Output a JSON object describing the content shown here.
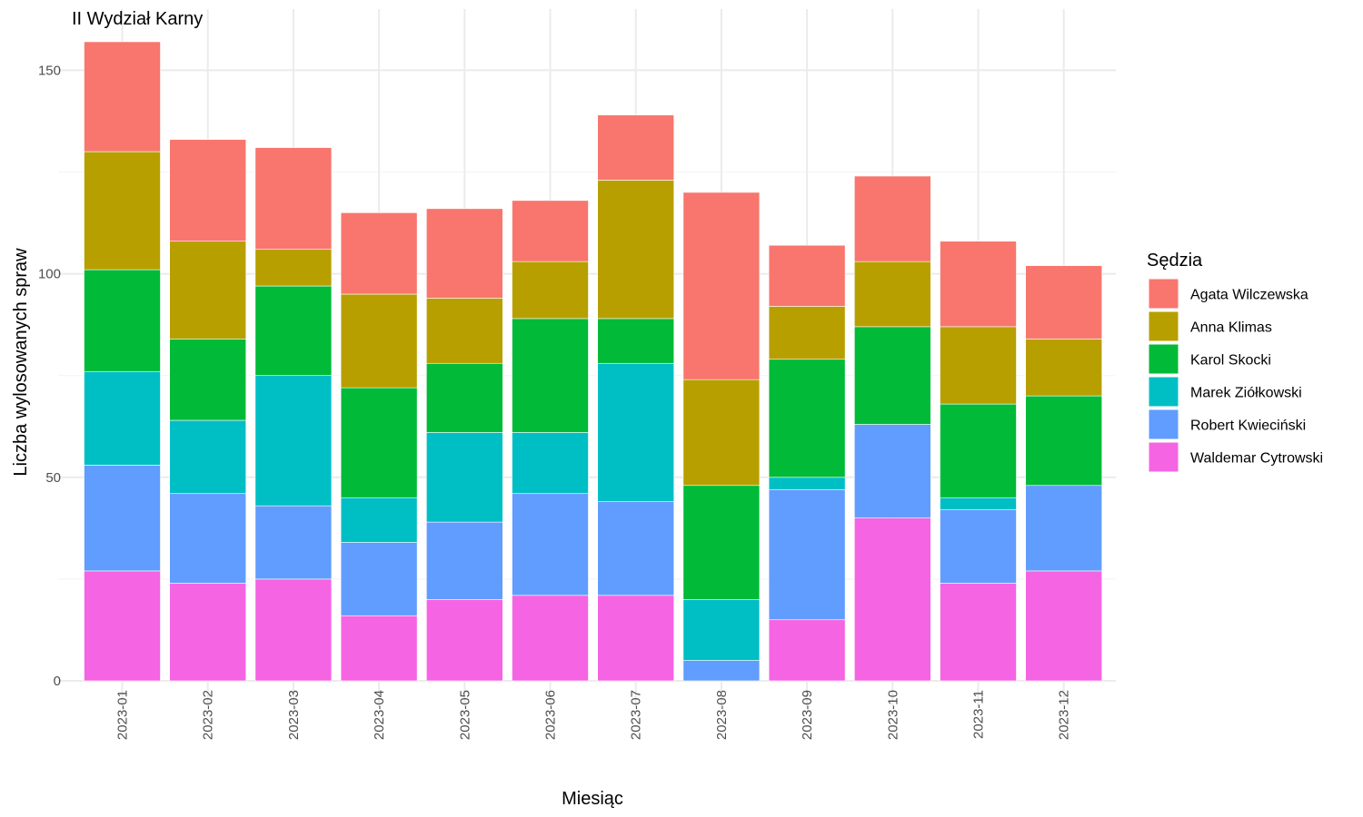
{
  "chart_data": {
    "type": "bar",
    "stacked": true,
    "title": "II Wydział Karny",
    "xlabel": "Miesiąc",
    "ylabel": "Liczba wylosowanych spraw",
    "ylim": [
      0,
      160
    ],
    "yticks": [
      0,
      50,
      100,
      150
    ],
    "grid": true,
    "legend_position": "right",
    "legend_title": "Sędzia",
    "categories": [
      "2023-01",
      "2023-02",
      "2023-03",
      "2023-04",
      "2023-05",
      "2023-06",
      "2023-07",
      "2023-08",
      "2023-09",
      "2023-10",
      "2023-11",
      "2023-12"
    ],
    "series": [
      {
        "name": "Agata Wilczewska",
        "color": "#F8766D",
        "values": [
          27,
          25,
          25,
          20,
          22,
          15,
          16,
          46,
          15,
          21,
          21,
          18
        ]
      },
      {
        "name": "Anna Klimas",
        "color": "#B79F00",
        "values": [
          29,
          24,
          9,
          23,
          16,
          14,
          34,
          26,
          13,
          16,
          19,
          14
        ]
      },
      {
        "name": "Karol Skocki",
        "color": "#00BA38",
        "values": [
          25,
          20,
          22,
          27,
          17,
          28,
          11,
          28,
          29,
          24,
          23,
          22
        ]
      },
      {
        "name": "Marek Ziółkowski",
        "color": "#00BFC4",
        "values": [
          23,
          18,
          32,
          11,
          22,
          15,
          34,
          15,
          3,
          0,
          3,
          0
        ]
      },
      {
        "name": "Robert Kwieciński",
        "color": "#619CFF",
        "values": [
          26,
          22,
          18,
          18,
          19,
          25,
          23,
          5,
          32,
          23,
          18,
          21
        ]
      },
      {
        "name": "Waldemar Cytrowski",
        "color": "#F564E3",
        "values": [
          27,
          24,
          25,
          16,
          20,
          21,
          21,
          0,
          15,
          40,
          24,
          27
        ]
      }
    ]
  }
}
